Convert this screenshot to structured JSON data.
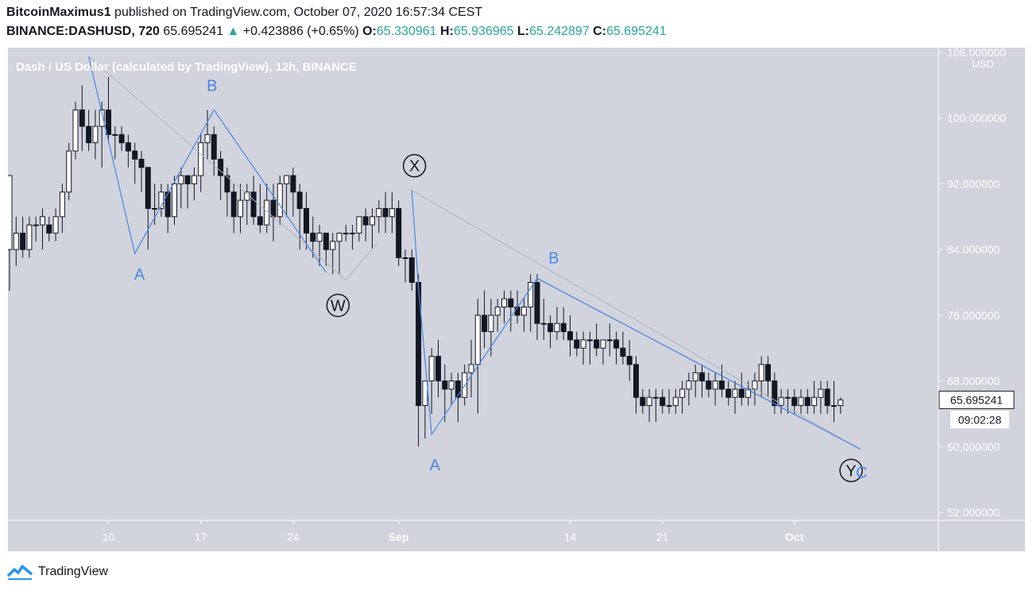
{
  "header": {
    "author": "BitcoinMaximus1",
    "published_text": "published on TradingView.com, October 07, 2020 16:57:34 CEST",
    "symbol": "BINANCE:DASHUSD, 720",
    "last": "65.695241",
    "change": "+0.423886 (+0.65%)",
    "o_label": "O:",
    "o": "65.330961",
    "h_label": "H:",
    "h": "65.936965",
    "l_label": "L:",
    "l": "65.242897",
    "c_label": "C:",
    "c": "65.695241"
  },
  "footer": {
    "brand": "TradingView",
    "logo_icon": "tradingview-logo-icon"
  },
  "chart_data": {
    "type": "candlestick",
    "title": "Dash / US Dollar (calculated by TradingView), 12h, BINANCE",
    "y_unit": "USD",
    "ylim": [
      48.5,
      108.5
    ],
    "y_ticks": [
      52,
      60,
      68,
      76,
      84,
      92,
      100,
      108
    ],
    "y_tick_labels": [
      "52.000000",
      "60.000000",
      "68.000000",
      "76.000000",
      "84.000000",
      "92.000000",
      "100.000000",
      "108.000000"
    ],
    "x_ticks": [
      {
        "label": "10",
        "bar": 15
      },
      {
        "label": "17",
        "bar": 29
      },
      {
        "label": "24",
        "bar": 43
      },
      {
        "label": "Sep",
        "bar": 59
      },
      {
        "label": "14",
        "bar": 85
      },
      {
        "label": "21",
        "bar": 99
      },
      {
        "label": "Oct",
        "bar": 119
      }
    ],
    "last_price_label": "65.695241",
    "countdown_label": "09:02:28",
    "colors": {
      "up": "#ffffff",
      "down": "#131722",
      "wave": "#4a86e8",
      "trend": "#aeb4bf",
      "background": "#d1d4dc"
    },
    "candles": [
      [
        84,
        93,
        79,
        93
      ],
      [
        84,
        88,
        82,
        86
      ],
      [
        86,
        88,
        83,
        84
      ],
      [
        84,
        88,
        83,
        87
      ],
      [
        87,
        88,
        85,
        87
      ],
      [
        87,
        89,
        84,
        88
      ],
      [
        87,
        88,
        85,
        86
      ],
      [
        86,
        89,
        85,
        88
      ],
      [
        88,
        92,
        86,
        91
      ],
      [
        91,
        97,
        90,
        96
      ],
      [
        96,
        102,
        95,
        101
      ],
      [
        101,
        104,
        96,
        99
      ],
      [
        99,
        101,
        96,
        97
      ],
      [
        97,
        101,
        95,
        99
      ],
      [
        99,
        102,
        94,
        101
      ],
      [
        101,
        105,
        97,
        98
      ],
      [
        98,
        99,
        95,
        98
      ],
      [
        98,
        99,
        96,
        97
      ],
      [
        97,
        98,
        94,
        96
      ],
      [
        96,
        97,
        92,
        95
      ],
      [
        95,
        96,
        91,
        94
      ],
      [
        94,
        94,
        84,
        89
      ],
      [
        89,
        92,
        87,
        89
      ],
      [
        89,
        92,
        88,
        91
      ],
      [
        91,
        92,
        86,
        88
      ],
      [
        88,
        93,
        87,
        92
      ],
      [
        92,
        94,
        89,
        93
      ],
      [
        93,
        93,
        89,
        92
      ],
      [
        92,
        94,
        90,
        93
      ],
      [
        93,
        98,
        91,
        97
      ],
      [
        97,
        101,
        95,
        98
      ],
      [
        98,
        99,
        93,
        95
      ],
      [
        95,
        96,
        90,
        93
      ],
      [
        93,
        94,
        88,
        91
      ],
      [
        91,
        92,
        86,
        88
      ],
      [
        88,
        92,
        86,
        90
      ],
      [
        90,
        92,
        87,
        91
      ],
      [
        91,
        93,
        87,
        88
      ],
      [
        88,
        92,
        86,
        87
      ],
      [
        87,
        92,
        86,
        90
      ],
      [
        90,
        92,
        85,
        88
      ],
      [
        88,
        93,
        87,
        92
      ],
      [
        92,
        93,
        88,
        93
      ],
      [
        93,
        94,
        88,
        91
      ],
      [
        91,
        92,
        84,
        89
      ],
      [
        89,
        91,
        84,
        86
      ],
      [
        86,
        88,
        83,
        85
      ],
      [
        85,
        87,
        82,
        86
      ],
      [
        86,
        86,
        82,
        84
      ],
      [
        84,
        86,
        81,
        85
      ],
      [
        85,
        86,
        81,
        86
      ],
      [
        86,
        87,
        85,
        86
      ],
      [
        86,
        87,
        84,
        86
      ],
      [
        86,
        88,
        85,
        88
      ],
      [
        88,
        89,
        85,
        87
      ],
      [
        87,
        89,
        84,
        88
      ],
      [
        88,
        90,
        86,
        89
      ],
      [
        89,
        91,
        86,
        88
      ],
      [
        88,
        91,
        86,
        89
      ],
      [
        89,
        90,
        82,
        83
      ],
      [
        83,
        84,
        80,
        83
      ],
      [
        83,
        84,
        79,
        80
      ],
      [
        80,
        81,
        60,
        65
      ],
      [
        65,
        68,
        61,
        68
      ],
      [
        68,
        72,
        64,
        71
      ],
      [
        71,
        73,
        66,
        68
      ],
      [
        68,
        70,
        63,
        67
      ],
      [
        67,
        69,
        65,
        68
      ],
      [
        68,
        69,
        63,
        66
      ],
      [
        66,
        70,
        65,
        69
      ],
      [
        69,
        73,
        66,
        70
      ],
      [
        70,
        78,
        64,
        76
      ],
      [
        76,
        79,
        72,
        74
      ],
      [
        74,
        78,
        71,
        76
      ],
      [
        76,
        78,
        74,
        77
      ],
      [
        77,
        79,
        75,
        78
      ],
      [
        78,
        79,
        74,
        77
      ],
      [
        77,
        79,
        75,
        76
      ],
      [
        76,
        78,
        74,
        77
      ],
      [
        77,
        81,
        74,
        80
      ],
      [
        80,
        81,
        73,
        75
      ],
      [
        75,
        78,
        73,
        75
      ],
      [
        75,
        76,
        72,
        74
      ],
      [
        74,
        77,
        73,
        75
      ],
      [
        75,
        77,
        73,
        74
      ],
      [
        74,
        76,
        71,
        73
      ],
      [
        73,
        74,
        71,
        72
      ],
      [
        72,
        74,
        70,
        73
      ],
      [
        73,
        74,
        70,
        73
      ],
      [
        73,
        75,
        71,
        72
      ],
      [
        72,
        73,
        70,
        73
      ],
      [
        73,
        75,
        71,
        73
      ],
      [
        73,
        74,
        70,
        72
      ],
      [
        72,
        74,
        70,
        71
      ],
      [
        71,
        73,
        68,
        70
      ],
      [
        70,
        71,
        64,
        66
      ],
      [
        66,
        67,
        64,
        65
      ],
      [
        65,
        67,
        63,
        66
      ],
      [
        66,
        67,
        63,
        66
      ],
      [
        66,
        67,
        64,
        65
      ],
      [
        65,
        67,
        64,
        65
      ],
      [
        65,
        67,
        64,
        66
      ],
      [
        66,
        68,
        64,
        67
      ],
      [
        67,
        69,
        65,
        68
      ],
      [
        68,
        70,
        66,
        69
      ],
      [
        69,
        70,
        66,
        68
      ],
      [
        68,
        69,
        66,
        67
      ],
      [
        67,
        69,
        65,
        68
      ],
      [
        68,
        70,
        66,
        67
      ],
      [
        67,
        68,
        65,
        66
      ],
      [
        66,
        68,
        64,
        67
      ],
      [
        67,
        69,
        65,
        66
      ],
      [
        66,
        68,
        65,
        67
      ],
      [
        67,
        69,
        65,
        68
      ],
      [
        68,
        71,
        66,
        70
      ],
      [
        70,
        71,
        66,
        68
      ],
      [
        68,
        69,
        64,
        65
      ],
      [
        65,
        67,
        64,
        66
      ],
      [
        66,
        67,
        64,
        66
      ],
      [
        66,
        67,
        64,
        65
      ],
      [
        65,
        67,
        64,
        66
      ],
      [
        66,
        67,
        64,
        65
      ],
      [
        65,
        68,
        64,
        66
      ],
      [
        66,
        68,
        64,
        67
      ],
      [
        67,
        68,
        64,
        65
      ],
      [
        65,
        68,
        63,
        65
      ],
      [
        65,
        66,
        64,
        65.7
      ]
    ],
    "wave_labels": [
      {
        "text": "A",
        "circled": false
      },
      {
        "text": "B",
        "circled": false
      },
      {
        "text": "W",
        "circled": true
      },
      {
        "text": "X",
        "circled": true
      },
      {
        "text": "A",
        "circled": false
      },
      {
        "text": "B",
        "circled": false
      },
      {
        "text": "Y",
        "circled": true
      },
      {
        "text": "C",
        "circled": false
      }
    ]
  }
}
